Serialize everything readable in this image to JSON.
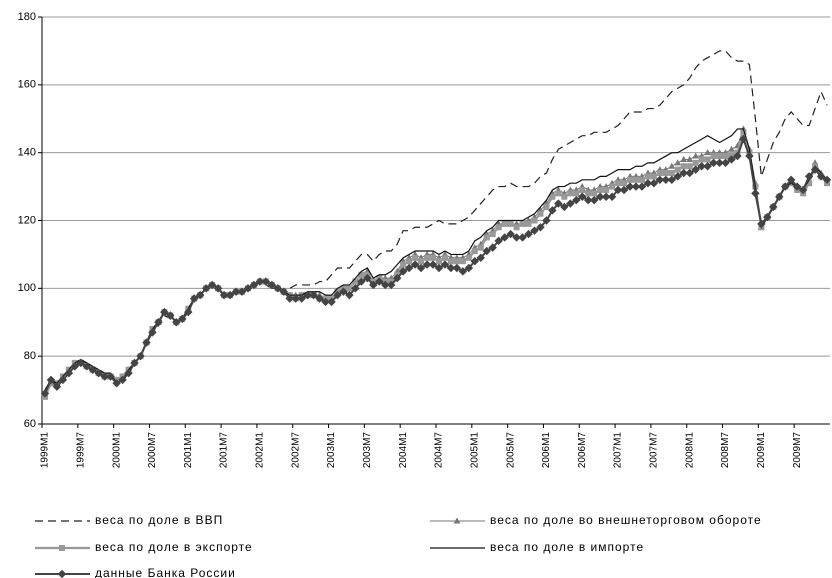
{
  "chart_data": {
    "type": "line",
    "categories": [
      "1999M1",
      null,
      null,
      null,
      null,
      null,
      "1999M7",
      null,
      null,
      null,
      null,
      null,
      "2000M1",
      null,
      null,
      null,
      null,
      null,
      "2000M7",
      null,
      null,
      null,
      null,
      null,
      "2001M1",
      null,
      null,
      null,
      null,
      null,
      "2001M7",
      null,
      null,
      null,
      null,
      null,
      "2002M1",
      null,
      null,
      null,
      null,
      null,
      "2002M7",
      null,
      null,
      null,
      null,
      null,
      "2003M1",
      null,
      null,
      null,
      null,
      null,
      "2003M7",
      null,
      null,
      null,
      null,
      null,
      "2004M1",
      null,
      null,
      null,
      null,
      null,
      "2004M7",
      null,
      null,
      null,
      null,
      null,
      "2005M1",
      null,
      null,
      null,
      null,
      null,
      "2005M7",
      null,
      null,
      null,
      null,
      null,
      "2006M1",
      null,
      null,
      null,
      null,
      null,
      "2006M7",
      null,
      null,
      null,
      null,
      null,
      "2007M1",
      null,
      null,
      null,
      null,
      null,
      "2007M7",
      null,
      null,
      null,
      null,
      null,
      "2008M1",
      null,
      null,
      null,
      null,
      null,
      "2008M7",
      null,
      null,
      null,
      null,
      null,
      "2009M1",
      null,
      null,
      null,
      null,
      null,
      "2009M7",
      null,
      null,
      null,
      null,
      null
    ],
    "series": [
      {
        "name": "веса по доле в ВВП",
        "color": "#222222",
        "dash": true,
        "marker": "none",
        "values": [
          70,
          73,
          72,
          74,
          76,
          78,
          79,
          78,
          77,
          76,
          75,
          75,
          72,
          73,
          76,
          78,
          80,
          84,
          87,
          89,
          92,
          91,
          90,
          91,
          94,
          97,
          98,
          100,
          101,
          100,
          98,
          98,
          99,
          99,
          100,
          101,
          102,
          101,
          100,
          100,
          99,
          100,
          101,
          101,
          101,
          101,
          102,
          102,
          104,
          106,
          106,
          106,
          108,
          110,
          110,
          108,
          110,
          111,
          111,
          113,
          117,
          117,
          118,
          118,
          118,
          119,
          120,
          119,
          119,
          119,
          120,
          121,
          123,
          125,
          127,
          129,
          130,
          130,
          131,
          130,
          130,
          130,
          131,
          133,
          134,
          138,
          141,
          142,
          143,
          144,
          145,
          145,
          146,
          146,
          146,
          147,
          148,
          150,
          152,
          152,
          152,
          153,
          153,
          154,
          156,
          158,
          159,
          160,
          162,
          165,
          167,
          168,
          169,
          170,
          170,
          168,
          167,
          167,
          166,
          150,
          133,
          138,
          143,
          146,
          150,
          152,
          150,
          148,
          148,
          153,
          158,
          154
        ]
      },
      {
        "name": "веса по доле во внешнеторговом обороте",
        "color": "#777777",
        "dash": false,
        "marker": "triangle",
        "values": [
          69,
          72,
          72,
          74,
          76,
          78,
          78,
          77,
          76,
          75,
          74,
          74,
          73,
          74,
          76,
          78,
          80,
          84,
          88,
          90,
          93,
          92,
          90,
          91,
          94,
          97,
          98,
          100,
          101,
          100,
          98,
          98,
          99,
          99,
          100,
          101,
          102,
          102,
          101,
          100,
          99,
          98,
          98,
          98,
          98,
          98,
          98,
          97,
          97,
          99,
          100,
          100,
          102,
          104,
          105,
          102,
          103,
          103,
          103,
          105,
          108,
          109,
          110,
          109,
          110,
          110,
          109,
          110,
          109,
          109,
          109,
          110,
          112,
          113,
          116,
          117,
          119,
          119,
          119,
          119,
          119,
          120,
          121,
          123,
          125,
          128,
          129,
          128,
          129,
          129,
          130,
          129,
          129,
          130,
          130,
          131,
          132,
          132,
          133,
          133,
          133,
          134,
          134,
          135,
          135,
          136,
          137,
          138,
          138,
          139,
          139,
          140,
          140,
          140,
          140,
          141,
          142,
          147,
          141,
          131,
          118,
          121,
          124,
          127,
          130,
          131,
          130,
          129,
          132,
          137,
          134,
          132
        ]
      },
      {
        "name": "веса по доле в экспорте",
        "color": "#999999",
        "dash": false,
        "marker": "square",
        "values": [
          68,
          72,
          72,
          74,
          76,
          78,
          78,
          77,
          76,
          75,
          74,
          74,
          73,
          74,
          76,
          78,
          80,
          84,
          88,
          90,
          93,
          92,
          90,
          91,
          94,
          97,
          98,
          100,
          101,
          100,
          98,
          98,
          99,
          99,
          100,
          101,
          102,
          102,
          101,
          100,
          99,
          98,
          97,
          98,
          98,
          98,
          97,
          97,
          97,
          99,
          100,
          100,
          102,
          104,
          104,
          102,
          103,
          102,
          102,
          104,
          107,
          108,
          109,
          108,
          109,
          109,
          108,
          109,
          108,
          108,
          108,
          109,
          111,
          112,
          115,
          116,
          118,
          119,
          119,
          118,
          119,
          119,
          120,
          122,
          124,
          127,
          128,
          127,
          128,
          128,
          129,
          128,
          128,
          129,
          129,
          130,
          131,
          131,
          132,
          132,
          132,
          133,
          133,
          134,
          134,
          134,
          135,
          136,
          136,
          137,
          138,
          138,
          139,
          139,
          139,
          139,
          140,
          146,
          140,
          130,
          118,
          121,
          124,
          127,
          130,
          131,
          129,
          128,
          131,
          136,
          133,
          131
        ]
      },
      {
        "name": "веса по доле в импорте",
        "color": "#111111",
        "dash": false,
        "marker": "none",
        "values": [
          70,
          73,
          72,
          74,
          76,
          78,
          79,
          78,
          77,
          76,
          75,
          75,
          72,
          73,
          76,
          78,
          80,
          84,
          88,
          90,
          93,
          92,
          90,
          91,
          94,
          97,
          98,
          100,
          101,
          100,
          98,
          98,
          99,
          99,
          100,
          101,
          102,
          102,
          101,
          100,
          99,
          98,
          98,
          98,
          99,
          99,
          99,
          98,
          98,
          100,
          101,
          101,
          103,
          105,
          106,
          103,
          104,
          104,
          105,
          107,
          109,
          110,
          111,
          111,
          111,
          111,
          110,
          111,
          110,
          110,
          110,
          111,
          114,
          115,
          117,
          118,
          120,
          120,
          120,
          120,
          120,
          121,
          122,
          124,
          126,
          129,
          130,
          130,
          131,
          131,
          132,
          132,
          132,
          133,
          133,
          134,
          135,
          135,
          135,
          136,
          136,
          137,
          137,
          138,
          139,
          140,
          140,
          141,
          142,
          143,
          144,
          145,
          144,
          143,
          144,
          145,
          147,
          147,
          141,
          130,
          118,
          121,
          124,
          127,
          130,
          131,
          130,
          129,
          132,
          136,
          134,
          132
        ]
      },
      {
        "name": "данные Банка России",
        "color": "#444444",
        "dash": false,
        "marker": "diamond",
        "values": [
          69,
          73,
          71,
          73,
          75,
          77,
          78,
          77,
          76,
          75,
          74,
          74,
          72,
          73,
          75,
          78,
          80,
          84,
          87,
          90,
          93,
          92,
          90,
          91,
          93,
          97,
          98,
          100,
          101,
          100,
          98,
          98,
          99,
          99,
          100,
          101,
          102,
          102,
          101,
          100,
          99,
          97,
          97,
          97,
          98,
          98,
          97,
          96,
          96,
          98,
          99,
          98,
          100,
          102,
          103,
          101,
          102,
          101,
          101,
          103,
          105,
          106,
          107,
          106,
          107,
          107,
          106,
          107,
          106,
          106,
          105,
          106,
          108,
          109,
          111,
          112,
          114,
          115,
          116,
          115,
          115,
          116,
          117,
          118,
          120,
          123,
          125,
          124,
          125,
          126,
          127,
          126,
          126,
          127,
          127,
          127,
          129,
          129,
          130,
          130,
          130,
          131,
          131,
          132,
          132,
          132,
          133,
          134,
          134,
          135,
          136,
          136,
          137,
          137,
          137,
          138,
          139,
          144,
          139,
          128,
          119,
          121,
          124,
          127,
          130,
          132,
          130,
          129,
          133,
          135,
          133,
          132
        ]
      }
    ],
    "ylim": [
      60,
      180
    ],
    "yticks": [
      60,
      80,
      100,
      120,
      140,
      160,
      180
    ],
    "grid": true
  }
}
